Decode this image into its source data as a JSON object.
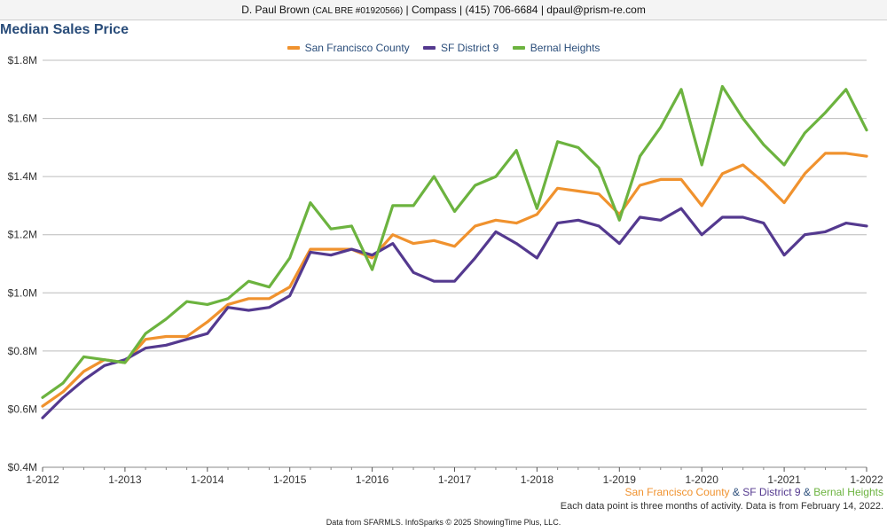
{
  "header": {
    "name": "D. Paul Brown",
    "license": "(CAL BRE #01920566)",
    "rest": "| Compass | (415) 706-6684 | dpaul@prism-re.com"
  },
  "chart_data": {
    "type": "line",
    "title": "Median Sales Price",
    "x_ticks": [
      "1-2012",
      "1-2013",
      "1-2014",
      "1-2015",
      "1-2016",
      "1-2017",
      "1-2018",
      "1-2019",
      "1-2020",
      "1-2021",
      "1-2022"
    ],
    "y_ticks": [
      "$0.4M",
      "$0.6M",
      "$0.8M",
      "$1.0M",
      "$1.2M",
      "$1.4M",
      "$1.6M",
      "$1.8M"
    ],
    "ylim": [
      0.4,
      1.8
    ],
    "y_unit": "$M",
    "grid": true,
    "legend_position": "top-center",
    "series": [
      {
        "name": "San Francisco County",
        "color": "#f0922e",
        "points": [
          [
            2012.0,
            0.61
          ],
          [
            2012.25,
            0.66
          ],
          [
            2012.5,
            0.73
          ],
          [
            2012.75,
            0.77
          ],
          [
            2013.0,
            0.76
          ],
          [
            2013.25,
            0.84
          ],
          [
            2013.5,
            0.85
          ],
          [
            2013.75,
            0.85
          ],
          [
            2014.0,
            0.9
          ],
          [
            2014.25,
            0.96
          ],
          [
            2014.5,
            0.98
          ],
          [
            2014.75,
            0.98
          ],
          [
            2015.0,
            1.02
          ],
          [
            2015.25,
            1.15
          ],
          [
            2015.5,
            1.15
          ],
          [
            2015.75,
            1.15
          ],
          [
            2016.0,
            1.12
          ],
          [
            2016.25,
            1.2
          ],
          [
            2016.5,
            1.17
          ],
          [
            2016.75,
            1.18
          ],
          [
            2017.0,
            1.16
          ],
          [
            2017.25,
            1.23
          ],
          [
            2017.5,
            1.25
          ],
          [
            2017.75,
            1.24
          ],
          [
            2018.0,
            1.27
          ],
          [
            2018.25,
            1.36
          ],
          [
            2018.5,
            1.35
          ],
          [
            2018.75,
            1.34
          ],
          [
            2019.0,
            1.27
          ],
          [
            2019.25,
            1.37
          ],
          [
            2019.5,
            1.39
          ],
          [
            2019.75,
            1.39
          ],
          [
            2020.0,
            1.3
          ],
          [
            2020.25,
            1.41
          ],
          [
            2020.5,
            1.44
          ],
          [
            2020.75,
            1.38
          ],
          [
            2021.0,
            1.31
          ],
          [
            2021.25,
            1.41
          ],
          [
            2021.5,
            1.48
          ],
          [
            2021.75,
            1.48
          ],
          [
            2022.0,
            1.47
          ]
        ]
      },
      {
        "name": "SF District 9",
        "color": "#54398f",
        "points": [
          [
            2012.0,
            0.57
          ],
          [
            2012.25,
            0.64
          ],
          [
            2012.5,
            0.7
          ],
          [
            2012.75,
            0.75
          ],
          [
            2013.0,
            0.77
          ],
          [
            2013.25,
            0.81
          ],
          [
            2013.5,
            0.82
          ],
          [
            2013.75,
            0.84
          ],
          [
            2014.0,
            0.86
          ],
          [
            2014.25,
            0.95
          ],
          [
            2014.5,
            0.94
          ],
          [
            2014.75,
            0.95
          ],
          [
            2015.0,
            0.99
          ],
          [
            2015.25,
            1.14
          ],
          [
            2015.5,
            1.13
          ],
          [
            2015.75,
            1.15
          ],
          [
            2016.0,
            1.13
          ],
          [
            2016.25,
            1.17
          ],
          [
            2016.5,
            1.07
          ],
          [
            2016.75,
            1.04
          ],
          [
            2017.0,
            1.04
          ],
          [
            2017.25,
            1.12
          ],
          [
            2017.5,
            1.21
          ],
          [
            2017.75,
            1.17
          ],
          [
            2018.0,
            1.12
          ],
          [
            2018.25,
            1.24
          ],
          [
            2018.5,
            1.25
          ],
          [
            2018.75,
            1.23
          ],
          [
            2019.0,
            1.17
          ],
          [
            2019.25,
            1.26
          ],
          [
            2019.5,
            1.25
          ],
          [
            2019.75,
            1.29
          ],
          [
            2020.0,
            1.2
          ],
          [
            2020.25,
            1.26
          ],
          [
            2020.5,
            1.26
          ],
          [
            2020.75,
            1.24
          ],
          [
            2021.0,
            1.13
          ],
          [
            2021.25,
            1.2
          ],
          [
            2021.5,
            1.21
          ],
          [
            2021.75,
            1.24
          ],
          [
            2022.0,
            1.23
          ]
        ]
      },
      {
        "name": "Bernal Heights",
        "color": "#6cb33f",
        "points": [
          [
            2012.0,
            0.64
          ],
          [
            2012.25,
            0.69
          ],
          [
            2012.5,
            0.78
          ],
          [
            2012.75,
            0.77
          ],
          [
            2013.0,
            0.76
          ],
          [
            2013.25,
            0.86
          ],
          [
            2013.5,
            0.91
          ],
          [
            2013.75,
            0.97
          ],
          [
            2014.0,
            0.96
          ],
          [
            2014.25,
            0.98
          ],
          [
            2014.5,
            1.04
          ],
          [
            2014.75,
            1.02
          ],
          [
            2015.0,
            1.12
          ],
          [
            2015.25,
            1.31
          ],
          [
            2015.5,
            1.22
          ],
          [
            2015.75,
            1.23
          ],
          [
            2016.0,
            1.08
          ],
          [
            2016.25,
            1.3
          ],
          [
            2016.5,
            1.3
          ],
          [
            2016.75,
            1.4
          ],
          [
            2017.0,
            1.28
          ],
          [
            2017.25,
            1.37
          ],
          [
            2017.5,
            1.4
          ],
          [
            2017.75,
            1.49
          ],
          [
            2018.0,
            1.29
          ],
          [
            2018.25,
            1.52
          ],
          [
            2018.5,
            1.5
          ],
          [
            2018.75,
            1.43
          ],
          [
            2019.0,
            1.25
          ],
          [
            2019.25,
            1.47
          ],
          [
            2019.5,
            1.57
          ],
          [
            2019.75,
            1.7
          ],
          [
            2020.0,
            1.44
          ],
          [
            2020.25,
            1.71
          ],
          [
            2020.5,
            1.6
          ],
          [
            2020.75,
            1.51
          ],
          [
            2021.0,
            1.44
          ],
          [
            2021.25,
            1.55
          ],
          [
            2021.5,
            1.62
          ],
          [
            2021.75,
            1.7
          ],
          [
            2022.0,
            1.56
          ]
        ]
      }
    ]
  },
  "footnotes": {
    "sep": "&",
    "activity": "Each data point is three months of activity. Data is from February 14, 2022.",
    "source": "Data from SFARMLS. InfoSparks © 2025 ShowingTime Plus, LLC."
  }
}
